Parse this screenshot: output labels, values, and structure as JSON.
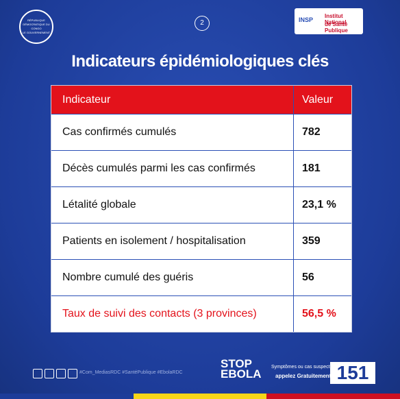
{
  "header": {
    "page_number": "2",
    "seal_text": "RÉPUBLIQUE DÉMOCRATIQUE DU CONGO",
    "seal_subtext": "LE GOUVERNEMENT",
    "logo_abbr": "INSP",
    "logo_title": "Institut National",
    "logo_subtitle": "de Santé Publique"
  },
  "title": "Indicateurs épidémiologiques clés",
  "table": {
    "columns": [
      "Indicateur",
      "Valeur"
    ],
    "rows": [
      [
        "Cas confirmés cumulés",
        "782"
      ],
      [
        "Décès cumulés parmi les cas confirmés",
        "181"
      ],
      [
        "Létalité globale",
        "23,1 %"
      ],
      [
        "Patients en isolement / hospitalisation",
        "359"
      ],
      [
        "Nombre cumulé des guéris",
        "56"
      ],
      [
        "Taux de suivi des contacts (3 provinces)",
        "56,5 %"
      ]
    ]
  },
  "footer": {
    "hashtags": "#Com_MediasRDC #SantéPublique #EbolaRDC",
    "stop": "STOP",
    "ebola": "EBOLA",
    "hotline_question": "Symptômes ou cas suspect?",
    "hotline_call": "appelez Gratuitement",
    "hotline_number": "151"
  }
}
